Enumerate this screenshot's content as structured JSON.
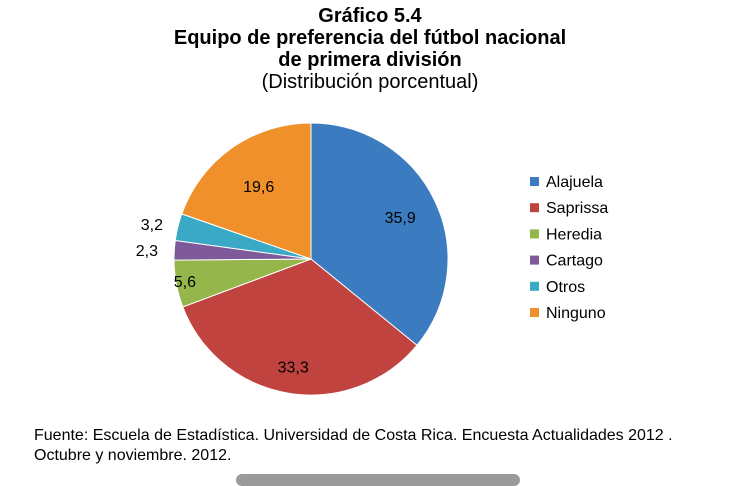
{
  "header": {
    "chart_number": "Gráfico 5.4",
    "title_line1": "Equipo de preferencia del fútbol nacional",
    "title_line2": "de primera división",
    "subtitle": "(Distribución porcentual)"
  },
  "chart_data": {
    "type": "pie",
    "title": "Equipo de preferencia del fútbol nacional de primera división",
    "subtitle": "(Distribución porcentual)",
    "categories": [
      "Alajuela",
      "Saprissa",
      "Heredia",
      "Cartago",
      "Otros",
      "Ninguno"
    ],
    "values": [
      35.9,
      33.3,
      5.6,
      2.3,
      3.2,
      19.6
    ],
    "labels": [
      "35,9",
      "33,3",
      "5,6",
      "2,3",
      "3,2",
      "19,6"
    ],
    "colors": [
      "#3b7bbf",
      "#c0433f",
      "#94b64b",
      "#7e5a9b",
      "#3aa9c6",
      "#f0902a"
    ],
    "start_angle": "12 o'clock",
    "direction": "clockwise",
    "legend_position": "right"
  },
  "source": "Fuente: Escuela de Estadística. Universidad de Costa Rica. Encuesta Actualidades 2012 . Octubre y noviembre. 2012."
}
